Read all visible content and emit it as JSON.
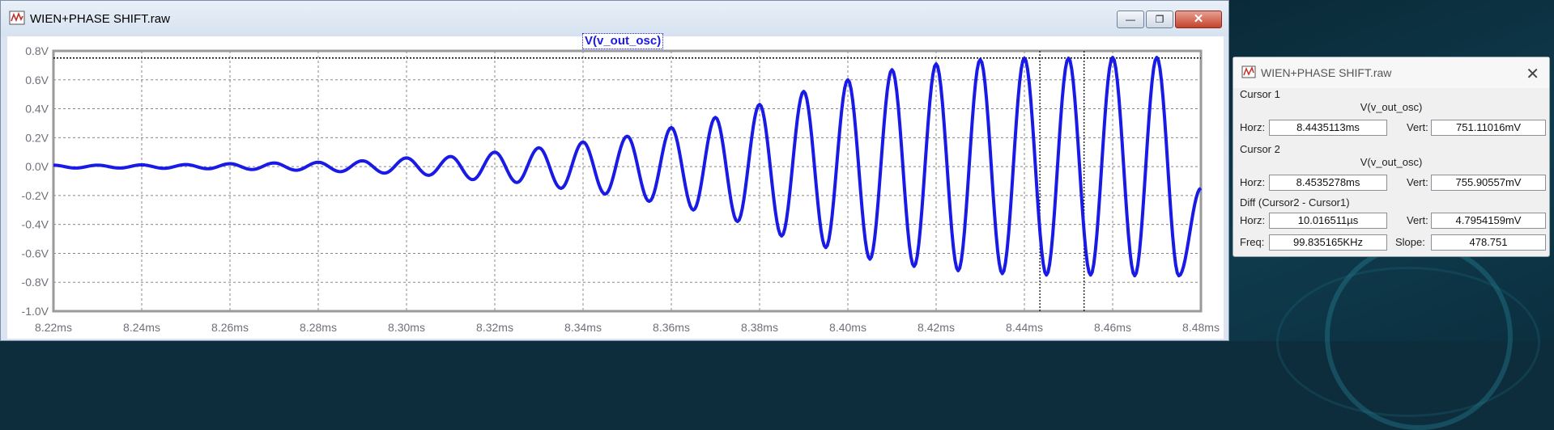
{
  "plot_window": {
    "title": "WIEN+PHASE SHIFT.raw",
    "min_label": "—",
    "max_label": "❐",
    "close_label": "✕",
    "trace_label": "V(v_out_osc)"
  },
  "chart_data": {
    "type": "line",
    "series": [
      {
        "name": "V(v_out_osc)",
        "color": "#1a1ae6",
        "peaks": [
          {
            "t": 8.22,
            "v": 0.01
          },
          {
            "t": 8.225,
            "v": -0.01
          },
          {
            "t": 8.23,
            "v": 0.01
          },
          {
            "t": 8.235,
            "v": -0.01
          },
          {
            "t": 8.24,
            "v": 0.012
          },
          {
            "t": 8.245,
            "v": -0.012
          },
          {
            "t": 8.25,
            "v": 0.014
          },
          {
            "t": 8.255,
            "v": -0.015
          },
          {
            "t": 8.26,
            "v": 0.02
          },
          {
            "t": 8.265,
            "v": -0.02
          },
          {
            "t": 8.27,
            "v": 0.025
          },
          {
            "t": 8.275,
            "v": -0.025
          },
          {
            "t": 8.28,
            "v": 0.03
          },
          {
            "t": 8.285,
            "v": -0.035
          },
          {
            "t": 8.29,
            "v": 0.04
          },
          {
            "t": 8.295,
            "v": -0.045
          },
          {
            "t": 8.3,
            "v": 0.06
          },
          {
            "t": 8.305,
            "v": -0.06
          },
          {
            "t": 8.31,
            "v": 0.07
          },
          {
            "t": 8.315,
            "v": -0.09
          },
          {
            "t": 8.32,
            "v": 0.1
          },
          {
            "t": 8.325,
            "v": -0.11
          },
          {
            "t": 8.33,
            "v": 0.13
          },
          {
            "t": 8.335,
            "v": -0.15
          },
          {
            "t": 8.34,
            "v": 0.17
          },
          {
            "t": 8.345,
            "v": -0.19
          },
          {
            "t": 8.35,
            "v": 0.21
          },
          {
            "t": 8.355,
            "v": -0.24
          },
          {
            "t": 8.36,
            "v": 0.27
          },
          {
            "t": 8.365,
            "v": -0.3
          },
          {
            "t": 8.37,
            "v": 0.34
          },
          {
            "t": 8.375,
            "v": -0.38
          },
          {
            "t": 8.38,
            "v": 0.43
          },
          {
            "t": 8.385,
            "v": -0.48
          },
          {
            "t": 8.39,
            "v": 0.52
          },
          {
            "t": 8.395,
            "v": -0.56
          },
          {
            "t": 8.4,
            "v": 0.6
          },
          {
            "t": 8.405,
            "v": -0.64
          },
          {
            "t": 8.41,
            "v": 0.67
          },
          {
            "t": 8.415,
            "v": -0.69
          },
          {
            "t": 8.42,
            "v": 0.71
          },
          {
            "t": 8.425,
            "v": -0.72
          },
          {
            "t": 8.43,
            "v": 0.74
          },
          {
            "t": 8.435,
            "v": -0.74
          },
          {
            "t": 8.44,
            "v": 0.75
          },
          {
            "t": 8.445,
            "v": -0.75
          },
          {
            "t": 8.45,
            "v": 0.75
          },
          {
            "t": 8.455,
            "v": -0.75
          },
          {
            "t": 8.46,
            "v": 0.755
          },
          {
            "t": 8.465,
            "v": -0.755
          },
          {
            "t": 8.47,
            "v": 0.755
          },
          {
            "t": 8.475,
            "v": -0.755
          },
          {
            "t": 8.48,
            "v": -0.15
          }
        ]
      }
    ],
    "xlim": [
      8.22,
      8.48
    ],
    "ylim": [
      -1.0,
      0.8
    ],
    "x_ticks": [
      {
        "v": 8.22,
        "label": "8.22ms"
      },
      {
        "v": 8.24,
        "label": "8.24ms"
      },
      {
        "v": 8.26,
        "label": "8.26ms"
      },
      {
        "v": 8.28,
        "label": "8.28ms"
      },
      {
        "v": 8.3,
        "label": "8.30ms"
      },
      {
        "v": 8.32,
        "label": "8.32ms"
      },
      {
        "v": 8.34,
        "label": "8.34ms"
      },
      {
        "v": 8.36,
        "label": "8.36ms"
      },
      {
        "v": 8.38,
        "label": "8.38ms"
      },
      {
        "v": 8.4,
        "label": "8.40ms"
      },
      {
        "v": 8.42,
        "label": "8.42ms"
      },
      {
        "v": 8.44,
        "label": "8.44ms"
      },
      {
        "v": 8.46,
        "label": "8.46ms"
      },
      {
        "v": 8.48,
        "label": "8.48ms"
      }
    ],
    "y_ticks": [
      {
        "v": 0.8,
        "label": "0.8V"
      },
      {
        "v": 0.6,
        "label": "0.6V"
      },
      {
        "v": 0.4,
        "label": "0.4V"
      },
      {
        "v": 0.2,
        "label": "0.2V"
      },
      {
        "v": 0.0,
        "label": "0.0V"
      },
      {
        "v": -0.2,
        "label": "-0.2V"
      },
      {
        "v": -0.4,
        "label": "-0.4V"
      },
      {
        "v": -0.6,
        "label": "-0.6V"
      },
      {
        "v": -0.8,
        "label": "-0.8V"
      },
      {
        "v": -1.0,
        "label": "-1.0V"
      }
    ],
    "grid": true,
    "cursors": [
      {
        "t": 8.4435113,
        "v": 0.75111016
      },
      {
        "t": 8.4535278,
        "v": 0.75590557
      }
    ]
  },
  "cursor_window": {
    "title": "WIEN+PHASE SHIFT.raw",
    "close_label": "✕",
    "cursor1": {
      "title": "Cursor 1",
      "trace": "V(v_out_osc)",
      "horz_label": "Horz:",
      "horz": "8.4435113ms",
      "vert_label": "Vert:",
      "vert": "751.11016mV"
    },
    "cursor2": {
      "title": "Cursor 2",
      "trace": "V(v_out_osc)",
      "horz_label": "Horz:",
      "horz": "8.4535278ms",
      "vert_label": "Vert:",
      "vert": "755.90557mV"
    },
    "diff": {
      "title": "Diff (Cursor2 - Cursor1)",
      "horz_label": "Horz:",
      "horz": "10.016511µs",
      "vert_label": "Vert:",
      "vert": "4.7954159mV",
      "freq_label": "Freq:",
      "freq": "99.835165KHz",
      "slope_label": "Slope:",
      "slope": "478.751"
    }
  }
}
